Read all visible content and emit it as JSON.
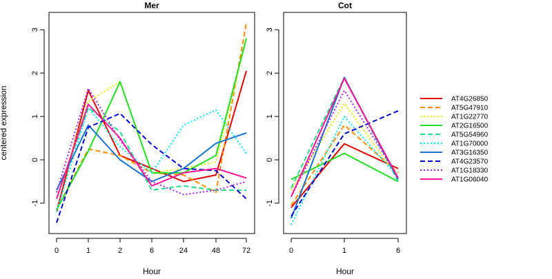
{
  "chart_data": [
    {
      "type": "line",
      "title": "Mer",
      "xlabel": "Hour",
      "ylabel": "centered expression",
      "categories": [
        "0",
        "1",
        "2",
        "6",
        "24",
        "48",
        "72"
      ],
      "ylim": [
        -1.7,
        3.4
      ],
      "yticks": [
        -1,
        0,
        1,
        2,
        3
      ],
      "grid": false,
      "series": [
        {
          "name": "AT4G26850",
          "color": "#e00000",
          "dash": "solid",
          "values": [
            -1.2,
            1.6,
            0.1,
            -0.2,
            -0.5,
            -0.35,
            2.05
          ]
        },
        {
          "name": "AT5G47910",
          "color": "#ff8c00",
          "dash": "dashed",
          "values": [
            -1.15,
            0.25,
            0.1,
            -0.3,
            -0.35,
            -0.75,
            3.15
          ]
        },
        {
          "name": "AT1G22770",
          "color": "#e8e800",
          "dash": "dotted",
          "values": [
            -0.9,
            1.35,
            1.8,
            -0.3,
            -0.2,
            -0.05,
            2.8
          ]
        },
        {
          "name": "AT2G16500",
          "color": "#22dd22",
          "dash": "solid",
          "values": [
            -1.15,
            0.2,
            1.8,
            -0.3,
            -0.3,
            0.1,
            2.8
          ]
        },
        {
          "name": "AT5G54960",
          "color": "#22dd88",
          "dash": "dashed",
          "values": [
            -0.9,
            1.2,
            0.65,
            -0.7,
            -0.6,
            -0.7,
            -0.7
          ]
        },
        {
          "name": "AT1G70000",
          "color": "#00e5ee",
          "dash": "dotted",
          "values": [
            -1.2,
            1.2,
            0.3,
            -0.3,
            0.8,
            1.15,
            0.15
          ]
        },
        {
          "name": "AT3G16350",
          "color": "#1874cd",
          "dash": "solid",
          "values": [
            -0.7,
            0.8,
            0.0,
            -0.5,
            -0.2,
            0.38,
            0.62
          ]
        },
        {
          "name": "AT4G23570",
          "color": "#0000cd",
          "dash": "dashed",
          "values": [
            -1.45,
            0.75,
            1.07,
            0.35,
            -0.2,
            -0.25,
            -0.9
          ]
        },
        {
          "name": "AT1G18330",
          "color": "#a020f0",
          "dash": "dotted",
          "values": [
            -0.75,
            1.65,
            0.45,
            -0.5,
            -0.8,
            -0.7,
            -0.5
          ]
        },
        {
          "name": "AT1G06040",
          "color": "#ff1493",
          "dash": "solid",
          "values": [
            -0.9,
            1.28,
            0.5,
            -0.6,
            -0.3,
            -0.2,
            -0.42
          ]
        }
      ]
    },
    {
      "type": "line",
      "title": "Cot",
      "xlabel": "Hour",
      "ylabel": "",
      "categories": [
        "0",
        "1",
        "6"
      ],
      "ylim": [
        -1.7,
        3.4
      ],
      "yticks": [
        -1,
        0,
        1,
        2,
        3
      ],
      "grid": false,
      "series": [
        {
          "name": "AT4G26850",
          "color": "#e00000",
          "dash": "solid",
          "values": [
            -1.1,
            0.37,
            -0.2
          ]
        },
        {
          "name": "AT5G47910",
          "color": "#ff8c00",
          "dash": "dashed",
          "values": [
            -1.05,
            0.8,
            -0.3
          ]
        },
        {
          "name": "AT1G22770",
          "color": "#e8e800",
          "dash": "dotted",
          "values": [
            -0.7,
            1.3,
            -0.4
          ]
        },
        {
          "name": "AT2G16500",
          "color": "#22dd22",
          "dash": "solid",
          "values": [
            -0.45,
            0.15,
            -0.5
          ]
        },
        {
          "name": "AT5G54960",
          "color": "#22dd88",
          "dash": "dashed",
          "values": [
            -0.65,
            1.9,
            -0.5
          ]
        },
        {
          "name": "AT1G70000",
          "color": "#00e5ee",
          "dash": "dotted",
          "values": [
            -1.5,
            1.0,
            -0.4
          ]
        },
        {
          "name": "AT3G16350",
          "color": "#1874cd",
          "dash": "solid",
          "values": [
            -1.35,
            1.9,
            -0.45
          ]
        },
        {
          "name": "AT4G23570",
          "color": "#0000cd",
          "dash": "dashed",
          "values": [
            -1.3,
            0.6,
            1.13
          ]
        },
        {
          "name": "AT1G18330",
          "color": "#a020f0",
          "dash": "dotted",
          "values": [
            -0.85,
            1.6,
            -0.4
          ]
        },
        {
          "name": "AT1G06040",
          "color": "#ff1493",
          "dash": "solid",
          "values": [
            -0.85,
            1.88,
            -0.42
          ]
        }
      ]
    }
  ],
  "legend": {
    "placement": "right",
    "items": [
      {
        "label": "AT4G26850",
        "color": "#e00000",
        "dash": "solid"
      },
      {
        "label": "AT5G47910",
        "color": "#ff8c00",
        "dash": "dashed"
      },
      {
        "label": "AT1G22770",
        "color": "#e8e800",
        "dash": "dotted"
      },
      {
        "label": "AT2G16500",
        "color": "#22dd22",
        "dash": "solid"
      },
      {
        "label": "AT5G54960",
        "color": "#22dd88",
        "dash": "dashed"
      },
      {
        "label": "AT1G70000",
        "color": "#00e5ee",
        "dash": "dotted"
      },
      {
        "label": "AT3G16350",
        "color": "#1874cd",
        "dash": "solid"
      },
      {
        "label": "AT4G23570",
        "color": "#0000cd",
        "dash": "dashed"
      },
      {
        "label": "AT1G18330",
        "color": "#a020f0",
        "dash": "dotted"
      },
      {
        "label": "AT1G06040",
        "color": "#ff1493",
        "dash": "solid"
      }
    ]
  }
}
